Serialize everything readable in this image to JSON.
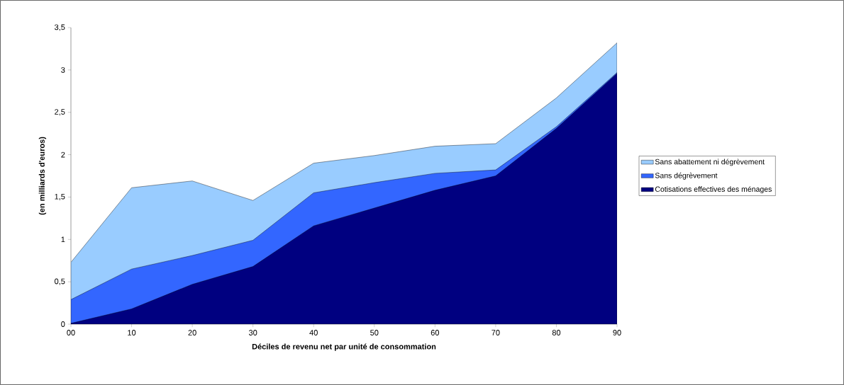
{
  "chart_data": {
    "type": "area",
    "xlabel": "Déciles de revenu net par unité de consommation",
    "ylabel": "(en milliards d'euros)",
    "categories": [
      "00",
      "10",
      "20",
      "30",
      "40",
      "50",
      "60",
      "70",
      "80",
      "90"
    ],
    "series": [
      {
        "name": "Sans abattement ni dégrèvement",
        "color": "#99ccff",
        "values": [
          0.73,
          1.61,
          1.69,
          1.46,
          1.9,
          1.99,
          2.1,
          2.13,
          2.67,
          3.32
        ]
      },
      {
        "name": "Sans dégrèvement",
        "color": "#3366ff",
        "values": [
          0.29,
          0.65,
          0.81,
          0.99,
          1.55,
          1.67,
          1.78,
          1.82,
          2.33,
          2.97
        ]
      },
      {
        "name": "Cotisations effectives des ménages",
        "color": "#000080",
        "values": [
          0.01,
          0.18,
          0.47,
          0.68,
          1.16,
          1.37,
          1.58,
          1.75,
          2.31,
          2.96
        ]
      }
    ],
    "ylim": [
      0,
      3.5
    ],
    "yticks": [
      {
        "value": 0,
        "label": "0"
      },
      {
        "value": 0.5,
        "label": "0,5"
      },
      {
        "value": 1,
        "label": "1"
      },
      {
        "value": 1.5,
        "label": "1,5"
      },
      {
        "value": 2,
        "label": "2"
      },
      {
        "value": 2.5,
        "label": "2,5"
      },
      {
        "value": 3,
        "label": "3"
      },
      {
        "value": 3.5,
        "label": "3,5"
      }
    ],
    "grid": false,
    "legend": "right"
  }
}
